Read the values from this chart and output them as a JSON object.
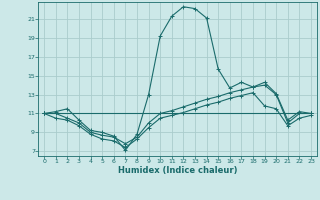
{
  "xlabel": "Humidex (Indice chaleur)",
  "bg_color": "#cce8e8",
  "grid_color": "#aacccc",
  "line_color": "#1a6b6b",
  "xlim": [
    -0.5,
    23.5
  ],
  "ylim": [
    6.5,
    22.8
  ],
  "yticks": [
    7,
    9,
    11,
    13,
    15,
    17,
    19,
    21
  ],
  "xticks": [
    0,
    1,
    2,
    3,
    4,
    5,
    6,
    7,
    8,
    9,
    10,
    11,
    12,
    13,
    14,
    15,
    16,
    17,
    18,
    19,
    20,
    21,
    22,
    23
  ],
  "line1_x": [
    0,
    1,
    2,
    3,
    4,
    5,
    6,
    7,
    8,
    9,
    10,
    11,
    12,
    13,
    14,
    15,
    16,
    17,
    18,
    19,
    20,
    21,
    22,
    23
  ],
  "line1_y": [
    11.0,
    11.2,
    11.5,
    10.3,
    9.2,
    9.0,
    8.6,
    7.1,
    8.8,
    13.0,
    19.2,
    21.3,
    22.3,
    22.1,
    21.1,
    15.7,
    13.7,
    14.3,
    13.8,
    14.3,
    13.1,
    10.3,
    11.2,
    11.0
  ],
  "line2_x": [
    0,
    1,
    2,
    3,
    4,
    5,
    6,
    7,
    8,
    9,
    10,
    11,
    12,
    13,
    14,
    15,
    16,
    17,
    18,
    19,
    20,
    21,
    22,
    23
  ],
  "line2_y": [
    11.0,
    11.0,
    10.5,
    10.0,
    9.0,
    8.7,
    8.5,
    7.8,
    8.5,
    10.0,
    11.0,
    11.3,
    11.7,
    12.1,
    12.5,
    12.8,
    13.2,
    13.5,
    13.8,
    14.0,
    13.0,
    10.0,
    11.0,
    11.0
  ],
  "line3_x": [
    0,
    1,
    2,
    3,
    4,
    5,
    6,
    7,
    8,
    9,
    10,
    11,
    12,
    13,
    14,
    15,
    16,
    17,
    18,
    19,
    20,
    21,
    22,
    23
  ],
  "line3_y": [
    11.0,
    10.5,
    10.3,
    9.7,
    8.8,
    8.3,
    8.1,
    7.4,
    8.3,
    9.5,
    10.5,
    10.8,
    11.1,
    11.5,
    11.9,
    12.2,
    12.6,
    12.9,
    13.2,
    11.8,
    11.5,
    9.7,
    10.5,
    10.8
  ],
  "line4_x": [
    0,
    23
  ],
  "line4_y": [
    11.0,
    11.0
  ]
}
